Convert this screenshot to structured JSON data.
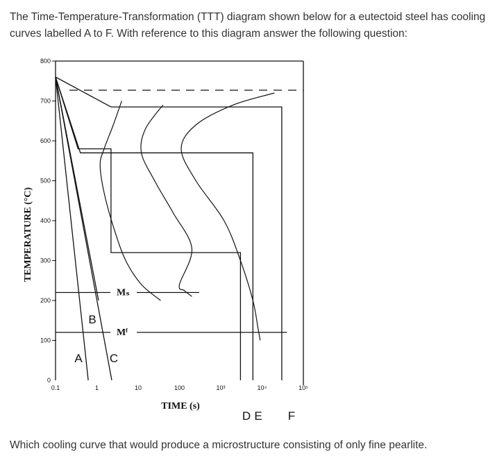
{
  "intro_text": "The Time-Temperature-Transformation (TTT) diagram shown below for a eutectoid steel has cooling curves labelled A to F. With reference to this diagram answer the following question:",
  "question_text": "Which cooling curve that would produce a microstructure consisting of only fine pearlite.",
  "chart_data": {
    "type": "line",
    "title": "",
    "xlabel": "TIME (s)",
    "ylabel": "TEMPERATURE (°C)",
    "xscale": "log",
    "xlim": [
      0.1,
      100000
    ],
    "ylim": [
      0,
      800
    ],
    "x_ticks": [
      {
        "value": 0.1,
        "label": "0.1"
      },
      {
        "value": 1,
        "label": "1"
      },
      {
        "value": 10,
        "label": "10"
      },
      {
        "value": 100,
        "label": "100"
      },
      {
        "value": 1000,
        "label": "10³"
      },
      {
        "value": 10000,
        "label": "10⁴"
      },
      {
        "value": 100000,
        "label": "10⁵"
      }
    ],
    "y_ticks": [
      {
        "value": 0,
        "label": "0"
      },
      {
        "value": 100,
        "label": "100"
      },
      {
        "value": 200,
        "label": "200"
      },
      {
        "value": 300,
        "label": "300"
      },
      {
        "value": 400,
        "label": "400"
      },
      {
        "value": 500,
        "label": "500"
      },
      {
        "value": 600,
        "label": "600"
      },
      {
        "value": 700,
        "label": "700"
      },
      {
        "value": 800,
        "label": "800"
      }
    ],
    "eutectoid_temp": 727,
    "ms_label": "Mₛ",
    "ms_temp": 220,
    "mf_label": "Mᶠ",
    "mf_temp": 120,
    "transformation_curves": [
      {
        "role": "start",
        "points": [
          [
            4,
            700
          ],
          [
            2.5,
            640
          ],
          [
            1.5,
            580
          ],
          [
            1.2,
            540
          ],
          [
            1.5,
            470
          ],
          [
            2.6,
            380
          ],
          [
            5,
            300
          ],
          [
            12,
            240
          ],
          [
            35,
            200
          ]
        ]
      },
      {
        "role": "finish",
        "points": [
          [
            40,
            690
          ],
          [
            15,
            630
          ],
          [
            12,
            570
          ],
          [
            25,
            500
          ],
          [
            70,
            420
          ],
          [
            200,
            330
          ],
          [
            100,
            240
          ],
          [
            130,
            225
          ],
          [
            200,
            210
          ]
        ]
      },
      {
        "role": "finish-lower",
        "points": [
          [
            20000,
            720
          ],
          [
            2000,
            690
          ],
          [
            250,
            640
          ],
          [
            110,
            580
          ],
          [
            250,
            500
          ],
          [
            1200,
            400
          ],
          [
            3000,
            300
          ],
          [
            6000,
            200
          ],
          [
            8000,
            130
          ],
          [
            9000,
            100
          ]
        ]
      }
    ],
    "cooling_curves": [
      {
        "label": "A",
        "points": [
          [
            0.1,
            760
          ],
          [
            0.62,
            0
          ]
        ]
      },
      {
        "label": "B",
        "points": [
          [
            0.1,
            760
          ],
          [
            1.1,
            200
          ]
        ]
      },
      {
        "label": "C",
        "points": [
          [
            0.1,
            760
          ],
          [
            2.3,
            0
          ]
        ]
      },
      {
        "label": "D",
        "points": [
          [
            0.1,
            760
          ],
          [
            0.35,
            580
          ],
          [
            2.2,
            580
          ],
          [
            2.2,
            320
          ],
          [
            3000,
            320
          ],
          [
            3000,
            0
          ]
        ]
      },
      {
        "label": "E",
        "points": [
          [
            0.1,
            760
          ],
          [
            0.4,
            570
          ],
          [
            6000,
            570
          ],
          [
            6000,
            0
          ]
        ]
      },
      {
        "label": "F",
        "points": [
          [
            0.1,
            760
          ],
          [
            2.2,
            685
          ],
          [
            30000,
            685
          ],
          [
            30000,
            0
          ]
        ]
      }
    ]
  }
}
